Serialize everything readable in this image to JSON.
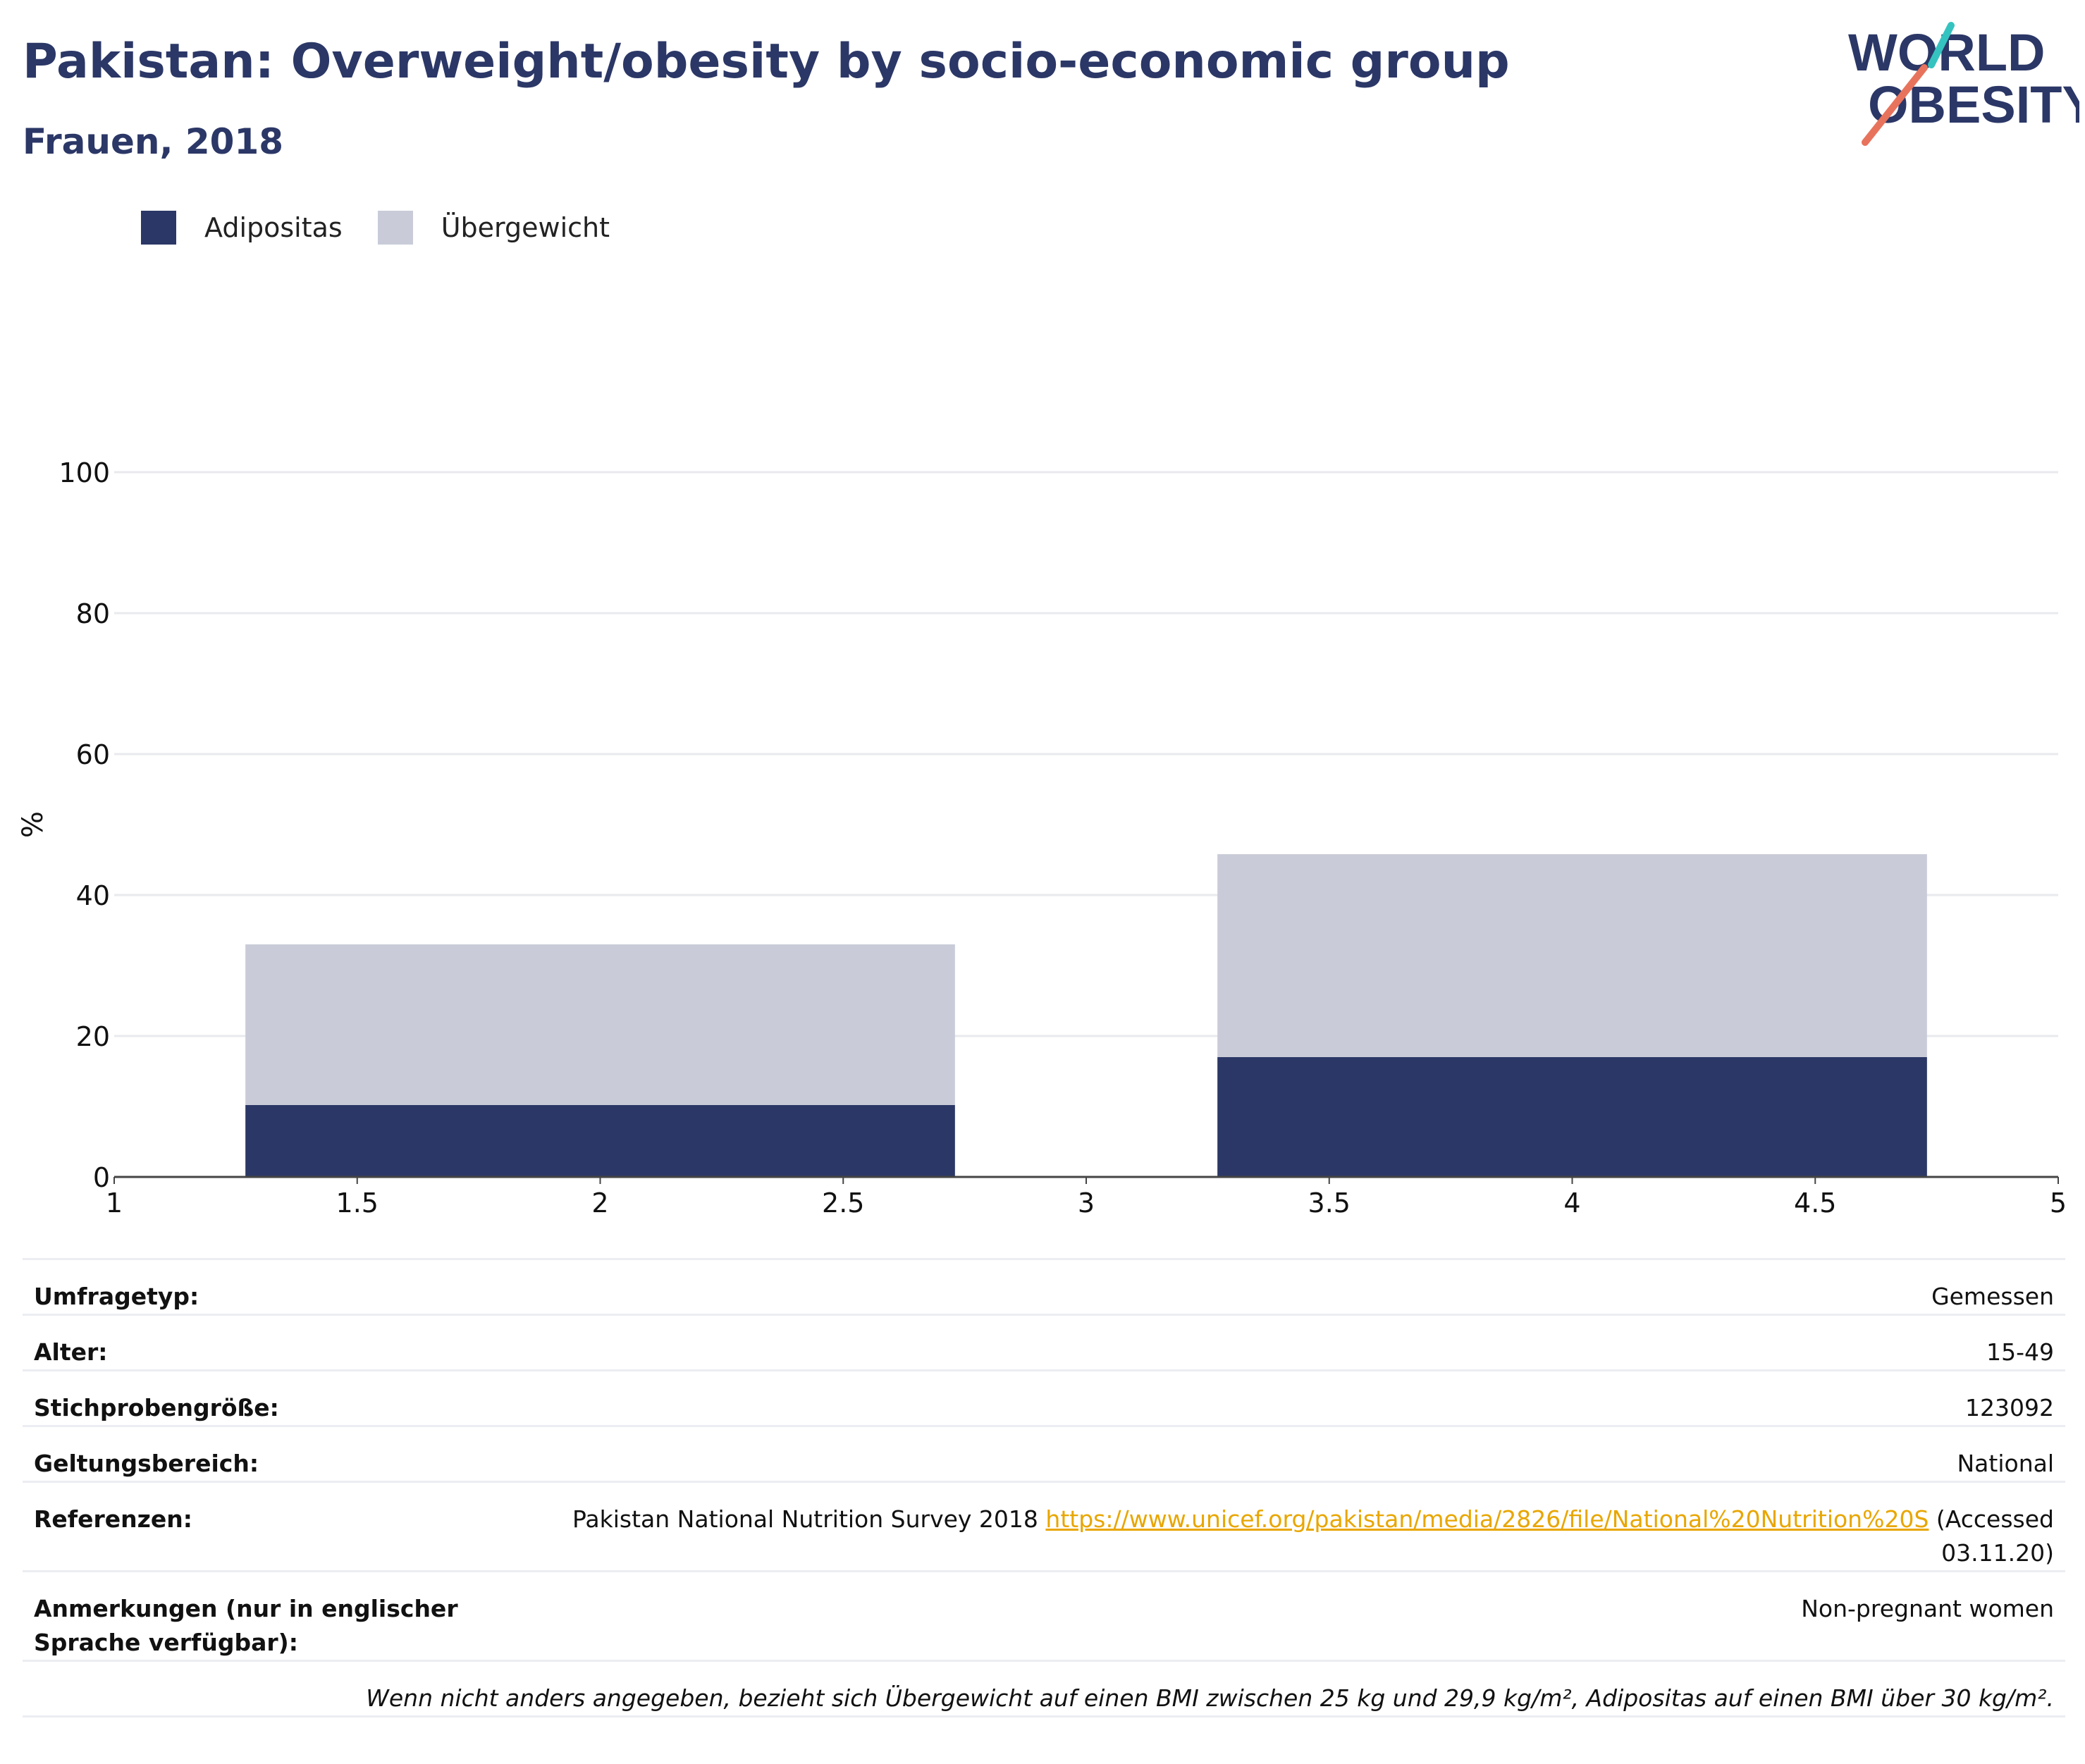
{
  "header": {
    "title": "Pakistan: Overweight/obesity by socio-economic group",
    "subtitle": "Frauen, 2018"
  },
  "logo": {
    "line1": "WORLD",
    "line2": "OBESITY"
  },
  "colors": {
    "title": "#2b3766",
    "obesity": "#2b3766",
    "overweight": "#c9ccd8",
    "link": "#e8a600",
    "logo_accent_teal": "#35c3c0",
    "logo_accent_coral": "#e8735c"
  },
  "legend": {
    "items": [
      {
        "label": "Adipositas",
        "color": "#2b3766"
      },
      {
        "label": "Übergewicht",
        "color": "#c9ccd8"
      }
    ]
  },
  "chart_data": {
    "type": "bar",
    "stacked": true,
    "xlim": [
      1,
      5
    ],
    "ylim": [
      0,
      100
    ],
    "xticks": [
      1,
      1.5,
      2,
      2.5,
      3,
      3.5,
      4,
      4.5,
      5
    ],
    "xtick_labels": [
      "1",
      "1.5",
      "2",
      "2.5",
      "3",
      "3.5",
      "4",
      "4.5",
      "5"
    ],
    "yticks": [
      0,
      20,
      40,
      60,
      80,
      100
    ],
    "ylabel": "%",
    "grid": true,
    "legend_position": "top-left",
    "bars": [
      {
        "x_start": 1.27,
        "x_end": 2.73,
        "obesity": 10.2,
        "overweight": 22.8
      },
      {
        "x_start": 3.27,
        "x_end": 4.73,
        "obesity": 17.0,
        "overweight": 28.8
      }
    ],
    "series": [
      {
        "name": "Adipositas",
        "values": [
          10.2,
          17.0
        ]
      },
      {
        "name": "Übergewicht",
        "values": [
          22.8,
          28.8
        ]
      }
    ]
  },
  "info": {
    "rows": [
      {
        "label": "Umfragetyp:",
        "value": "Gemessen"
      },
      {
        "label": "Alter:",
        "value": "15-49"
      },
      {
        "label": "Stichprobengröße:",
        "value": "123092"
      },
      {
        "label": "Geltungsbereich:",
        "value": "National"
      }
    ],
    "references": {
      "label": "Referenzen:",
      "text": "Pakistan National Nutrition Survey 2018",
      "link": "https://www.unicef.org/pakistan/media/2826/file/National%20Nutrition%20S",
      "accessed": "(Accessed 03.11.20)"
    },
    "notes": {
      "label": "Anmerkungen (nur in englischer Sprache verfügbar):",
      "value": "Non-pregnant women"
    },
    "footnote": "Wenn nicht anders angegeben, bezieht sich Übergewicht auf einen BMI zwischen 25 kg und 29,9 kg/m², Adipositas auf einen BMI über 30 kg/m²."
  }
}
